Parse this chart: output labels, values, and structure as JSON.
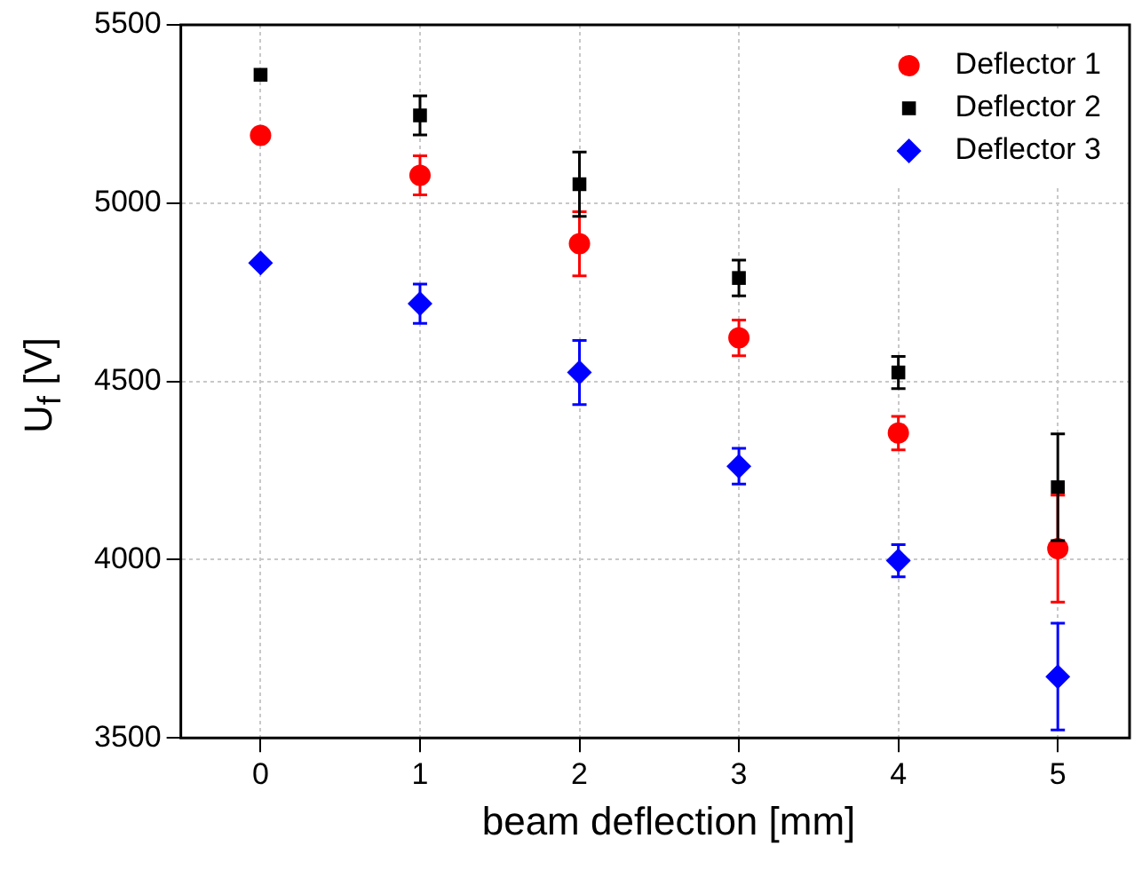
{
  "chart_data": {
    "type": "scatter",
    "xlabel": "beam deflection [mm]",
    "ylabel": "U$_{f}$ [V]",
    "x": [
      0,
      1,
      2,
      3,
      4,
      5
    ],
    "series": [
      {
        "name": "Deflector 1",
        "color": "#ff0000",
        "marker": "circle",
        "values": [
          5190,
          5078,
          4886,
          4622,
          4355,
          4031
        ],
        "errors": [
          null,
          55,
          90,
          50,
          47,
          150
        ]
      },
      {
        "name": "Deflector 2",
        "color": "#000000",
        "marker": "square",
        "values": [
          5360,
          5246,
          5053,
          4790,
          4525,
          4203
        ],
        "errors": [
          null,
          55,
          90,
          50,
          45,
          150
        ]
      },
      {
        "name": "Deflector 3",
        "color": "#0000ff",
        "marker": "diamond",
        "values": [
          4832,
          4718,
          4525,
          4262,
          3997,
          3672
        ],
        "errors": [
          null,
          55,
          90,
          50,
          45,
          150
        ]
      }
    ],
    "xlim": [
      -0.5,
      5.45
    ],
    "xticks": [
      0,
      1,
      2,
      3,
      4,
      5
    ],
    "ylim": [
      3500,
      5500
    ],
    "yticks": [
      3500,
      4000,
      4500,
      5000,
      5500
    ],
    "grid": true,
    "legend": "top right"
  }
}
